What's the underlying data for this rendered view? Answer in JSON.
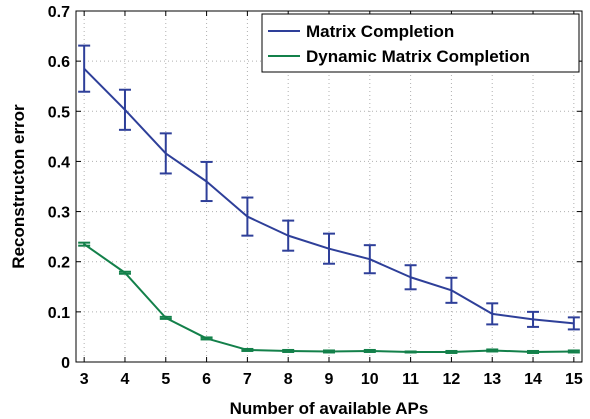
{
  "chart_data": {
    "type": "line",
    "title": "",
    "xlabel": "Number of available APs",
    "ylabel": "Reconstructon error",
    "x": [
      3,
      4,
      5,
      6,
      7,
      8,
      9,
      10,
      11,
      12,
      13,
      14,
      15
    ],
    "xlim": [
      2.8,
      15.2
    ],
    "ylim": [
      0,
      0.7
    ],
    "xticks": [
      "3",
      "4",
      "5",
      "6",
      "7",
      "8",
      "9",
      "10",
      "11",
      "12",
      "13",
      "14",
      "15"
    ],
    "yticks": [
      "0",
      "0.1",
      "0.2",
      "0.3",
      "0.4",
      "0.5",
      "0.6",
      "0.7"
    ],
    "grid": true,
    "legend_position": "top-right",
    "series": [
      {
        "name": "Matrix Completion",
        "color": "#2e3f99",
        "values": [
          0.585,
          0.503,
          0.416,
          0.36,
          0.29,
          0.252,
          0.226,
          0.205,
          0.169,
          0.143,
          0.096,
          0.085,
          0.077
        ],
        "errors": [
          0.046,
          0.04,
          0.04,
          0.039,
          0.038,
          0.03,
          0.03,
          0.028,
          0.024,
          0.025,
          0.021,
          0.015,
          0.012
        ]
      },
      {
        "name": "Dynamic Matrix Completion",
        "color": "#13804a",
        "values": [
          0.235,
          0.178,
          0.088,
          0.047,
          0.024,
          0.022,
          0.021,
          0.022,
          0.02,
          0.02,
          0.023,
          0.02,
          0.021
        ],
        "errors": [
          0.003,
          0.002,
          0.002,
          0.002,
          0.002,
          0.002,
          0.002,
          0.002,
          0.001,
          0.002,
          0.002,
          0.002,
          0.002
        ]
      }
    ]
  }
}
